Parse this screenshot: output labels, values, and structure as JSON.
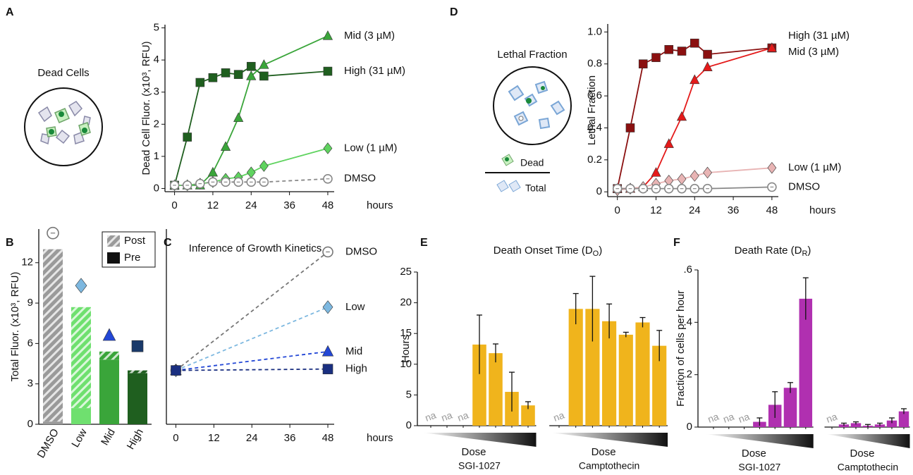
{
  "chart_data": [
    {
      "type": "line",
      "panel": "A",
      "title": "Dead Cells",
      "ylabel": "Dead Cell Fluor. (x10³, RFU)",
      "xlabel": "hours",
      "xlim": [
        -3,
        50
      ],
      "xticks": [
        0,
        12,
        24,
        36,
        48
      ],
      "ylim": [
        -0.1,
        5.1
      ],
      "yticks": [
        0,
        1,
        2,
        3,
        4,
        5
      ],
      "x": [
        0,
        4,
        8,
        12,
        16,
        20,
        24,
        28,
        48
      ],
      "series": [
        {
          "name": "High (31 µM)",
          "color": "#1f5f1f",
          "marker": "square",
          "values": [
            0.1,
            1.6,
            3.3,
            3.45,
            3.6,
            3.55,
            3.8,
            3.5,
            3.65
          ]
        },
        {
          "name": "Mid (3 µM)",
          "color": "#3aa53a",
          "marker": "triangle",
          "values": [
            0.1,
            0.1,
            0.1,
            0.5,
            1.3,
            2.2,
            3.5,
            3.85,
            4.75
          ]
        },
        {
          "name": "Low (1 µM)",
          "color": "#5fd35f",
          "marker": "diamond",
          "values": [
            0.1,
            0.1,
            0.15,
            0.2,
            0.3,
            0.35,
            0.5,
            0.7,
            1.25
          ]
        },
        {
          "name": "DMSO",
          "color": "#888888",
          "marker": "circle",
          "open": true,
          "dashed": true,
          "values": [
            0.1,
            0.1,
            0.15,
            0.2,
            0.2,
            0.2,
            0.2,
            0.2,
            0.3
          ]
        }
      ]
    },
    {
      "type": "stacked_bar",
      "panel": "B",
      "ylabel": "Total Fluor. (x10³, RFU)",
      "categories": [
        "DMSO",
        "Low",
        "Mid",
        "High"
      ],
      "ylim": [
        0,
        14.5
      ],
      "yticks": [
        0,
        3,
        6,
        9,
        12
      ],
      "colors": [
        "#9a9a9a",
        "#6fe06f",
        "#3aa53a",
        "#1f5f1f"
      ],
      "series": [
        {
          "name": "Pre",
          "color": "#111111",
          "values": [
            0.2,
            1.2,
            4.8,
            3.8
          ]
        },
        {
          "name": "Post",
          "color": "#9a9a9a",
          "pattern": "hatch",
          "values": [
            12.8,
            7.5,
            0.6,
            0.2
          ]
        }
      ],
      "predicted": {
        "values": [
          14.2,
          10.3,
          6.6,
          5.8
        ],
        "markers": [
          "circle",
          "diamond",
          "triangle",
          "square"
        ],
        "colors": [
          "#777777",
          "#7db8e0",
          "#2347d6",
          "#1a3a6a"
        ]
      }
    },
    {
      "type": "line",
      "panel": "C",
      "title": "Inference of Growth Kinetics",
      "xlabel": "hours",
      "xlim": [
        -3,
        50
      ],
      "xticks": [
        0,
        12,
        24,
        36,
        48
      ],
      "ylim": [
        0,
        14.5
      ],
      "x": [
        0,
        48
      ],
      "series": [
        {
          "name": "DMSO",
          "color": "#777777",
          "marker": "circle",
          "open": true,
          "dashed": true,
          "values": [
            4,
            12.8
          ]
        },
        {
          "name": "Low",
          "color": "#7db8e0",
          "marker": "diamond",
          "dashed": true,
          "values": [
            4,
            8.7
          ]
        },
        {
          "name": "Mid",
          "color": "#2347d6",
          "marker": "triangle",
          "dashed": true,
          "values": [
            4,
            5.4
          ]
        },
        {
          "name": "High",
          "color": "#1a2f80",
          "marker": "square",
          "dashed": true,
          "values": [
            4,
            4.1
          ]
        }
      ]
    },
    {
      "type": "line",
      "panel": "D",
      "title": "Lethal Fraction",
      "ylabel": "Lethal Fraction",
      "xlabel": "hours",
      "icon_labels": [
        "Dead",
        "Total"
      ],
      "xlim": [
        -3,
        50
      ],
      "xticks": [
        0,
        12,
        24,
        36,
        48
      ],
      "ylim": [
        -0.03,
        1.05
      ],
      "yticks": [
        0,
        0.2,
        0.4,
        0.6,
        0.8,
        {
          "value": 1,
          "label": "1.0"
        }
      ],
      "x": [
        0,
        4,
        8,
        12,
        16,
        20,
        24,
        28,
        48
      ],
      "series": [
        {
          "name": "High (31 µM)",
          "color": "#8b1010",
          "marker": "square",
          "values": [
            0.02,
            0.4,
            0.8,
            0.84,
            0.89,
            0.88,
            0.93,
            0.86,
            0.9
          ]
        },
        {
          "name": "Mid (3 µM)",
          "color": "#e41a1a",
          "marker": "triangle",
          "values": [
            0.02,
            0.02,
            0.03,
            0.12,
            0.3,
            0.47,
            0.7,
            0.78,
            0.9
          ]
        },
        {
          "name": "Low (1 µM)",
          "color": "#e8b4b4",
          "marker": "diamond",
          "values": [
            0.01,
            0.02,
            0.03,
            0.05,
            0.07,
            0.08,
            0.1,
            0.12,
            0.15
          ]
        },
        {
          "name": "DMSO",
          "color": "#888888",
          "marker": "circle",
          "open": true,
          "values": [
            0.02,
            0.02,
            0.02,
            0.02,
            0.02,
            0.02,
            0.02,
            0.02,
            0.03
          ]
        }
      ]
    },
    {
      "type": "grouped_bar",
      "panel": "E",
      "title": [
        "Death Onset Time (D",
        "O",
        ")"
      ],
      "ylabel": "Hours",
      "dose_label": "Dose",
      "ylim": [
        0,
        25
      ],
      "yticks": [
        0,
        5,
        10,
        15,
        20,
        25
      ],
      "color": "#f0b41c",
      "groups": [
        {
          "name": "SGI-1027",
          "values": [
            null,
            null,
            null,
            13.2,
            11.8,
            5.5,
            3.3
          ],
          "errors": [
            null,
            null,
            null,
            4.8,
            1.5,
            3.2,
            0.6
          ],
          "value_labels": [
            "na",
            "na",
            "na",
            null,
            null,
            null,
            null
          ]
        },
        {
          "name": "Camptothecin",
          "values": [
            null,
            19,
            19,
            17,
            14.8,
            16.8,
            13
          ],
          "errors": [
            null,
            2.5,
            5.3,
            2.8,
            0.4,
            0.8,
            2.5
          ],
          "value_labels": [
            "na",
            null,
            null,
            null,
            null,
            null,
            null
          ]
        }
      ]
    },
    {
      "type": "grouped_bar",
      "panel": "F",
      "title": [
        "Death Rate (D",
        "R",
        ")"
      ],
      "ylabel": "Fraction of cells per hour",
      "dose_label": "Dose",
      "ylim": [
        0,
        0.6
      ],
      "yticks": [
        0,
        {
          "value": 0.2,
          "label": ".2"
        },
        {
          "value": 0.4,
          "label": ".4"
        },
        {
          "value": 0.6,
          "label": ".6"
        }
      ],
      "color": "#b030b0",
      "groups": [
        {
          "name": "SGI-1027",
          "values": [
            null,
            null,
            null,
            0.02,
            0.085,
            0.15,
            0.49
          ],
          "errors": [
            null,
            null,
            null,
            0.015,
            0.05,
            0.02,
            0.08
          ],
          "value_labels": [
            "na",
            "na",
            "na",
            null,
            null,
            null,
            null
          ]
        },
        {
          "name": "Camptothecin",
          "values": [
            null,
            0.01,
            0.015,
            0.005,
            0.01,
            0.025,
            0.06
          ],
          "errors": [
            null,
            0.005,
            0.005,
            0.005,
            0.005,
            0.01,
            0.01
          ],
          "value_labels": [
            "na",
            null,
            null,
            null,
            null,
            null,
            null
          ]
        }
      ]
    }
  ]
}
